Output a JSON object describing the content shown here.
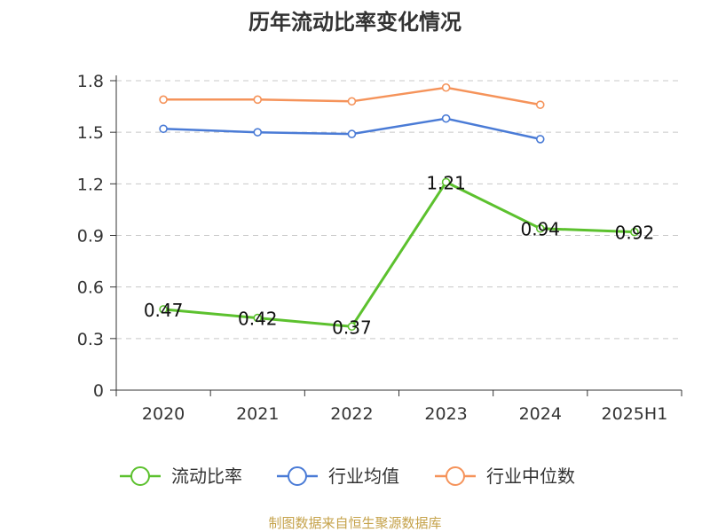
{
  "chart_data": {
    "type": "line",
    "title": "历年流动比率变化情况",
    "categories": [
      "2020",
      "2021",
      "2022",
      "2023",
      "2024",
      "2025H1"
    ],
    "y_ticks": [
      "0",
      "0.3",
      "0.6",
      "0.9",
      "1.2",
      "1.5",
      "1.8"
    ],
    "ylim": [
      0,
      1.8
    ],
    "grid": true,
    "legend_position": "bottom",
    "series": [
      {
        "name": "流动比率",
        "color": "#5cc12e",
        "values": [
          0.47,
          0.42,
          0.37,
          1.21,
          0.94,
          0.92
        ],
        "labels": [
          "0.47",
          "0.42",
          "0.37",
          "1.21",
          "0.94",
          "0.92"
        ]
      },
      {
        "name": "行业均值",
        "color": "#4a7bd6",
        "values": [
          1.52,
          1.5,
          1.49,
          1.58,
          1.46,
          null
        ]
      },
      {
        "name": "行业中位数",
        "color": "#f5935a",
        "values": [
          1.69,
          1.69,
          1.68,
          1.76,
          1.66,
          null
        ]
      }
    ],
    "source": "制图数据来自恒生聚源数据库"
  }
}
